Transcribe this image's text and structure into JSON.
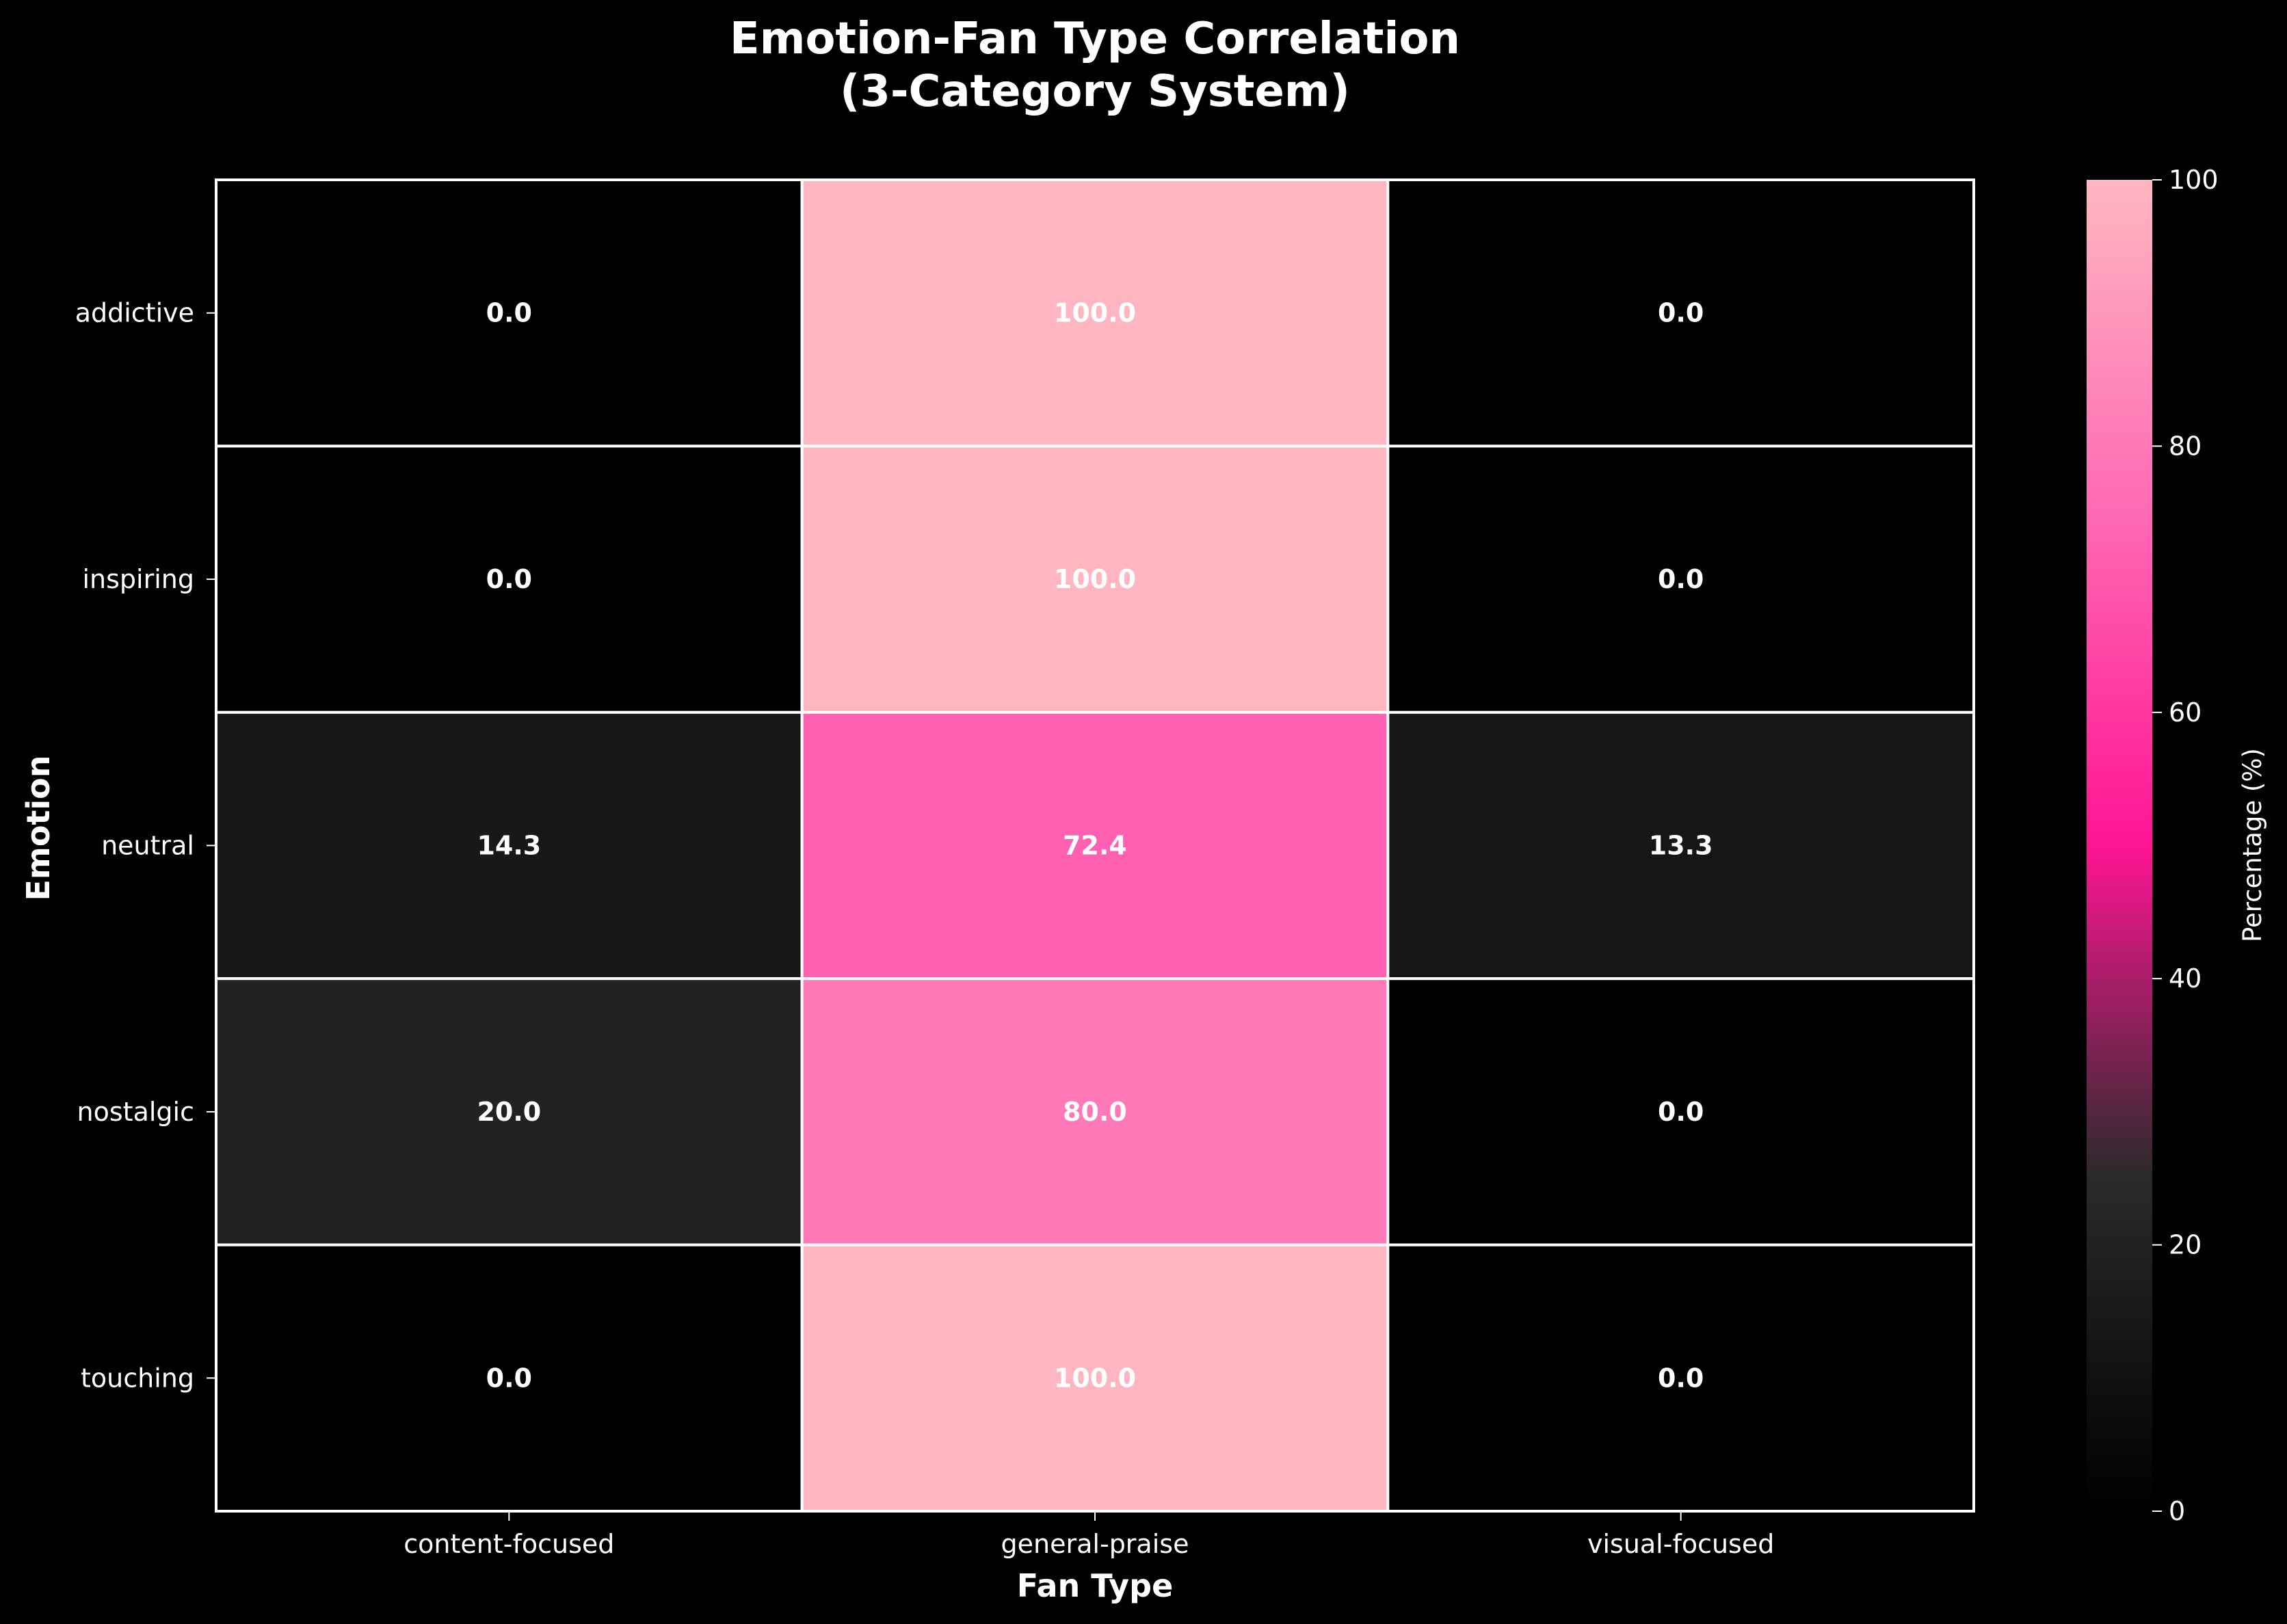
{
  "chart_data": {
    "type": "heatmap",
    "title_lines": [
      "Emotion-Fan Type Correlation",
      "(3-Category System)"
    ],
    "xlabel": "Fan Type",
    "ylabel": "Emotion",
    "x_categories": [
      "content-focused",
      "general-praise",
      "visual-focused"
    ],
    "y_categories": [
      "addictive",
      "inspiring",
      "neutral",
      "nostalgic",
      "touching"
    ],
    "values": [
      [
        0.0,
        100.0,
        0.0
      ],
      [
        0.0,
        100.0,
        0.0
      ],
      [
        14.3,
        72.4,
        13.3
      ],
      [
        20.0,
        80.0,
        0.0
      ],
      [
        0.0,
        100.0,
        0.0
      ]
    ],
    "value_format": "0.0",
    "colorbar": {
      "label": "Percentage (%)",
      "range": [
        0,
        100
      ],
      "ticks": [
        0,
        20,
        40,
        60,
        80,
        100
      ]
    },
    "colormap": [
      "#000000",
      "#2a2a2a",
      "#ff1493",
      "#ff69b4",
      "#ffb6c1"
    ],
    "grid_line_color": "#ffffff",
    "background": "#000000"
  }
}
